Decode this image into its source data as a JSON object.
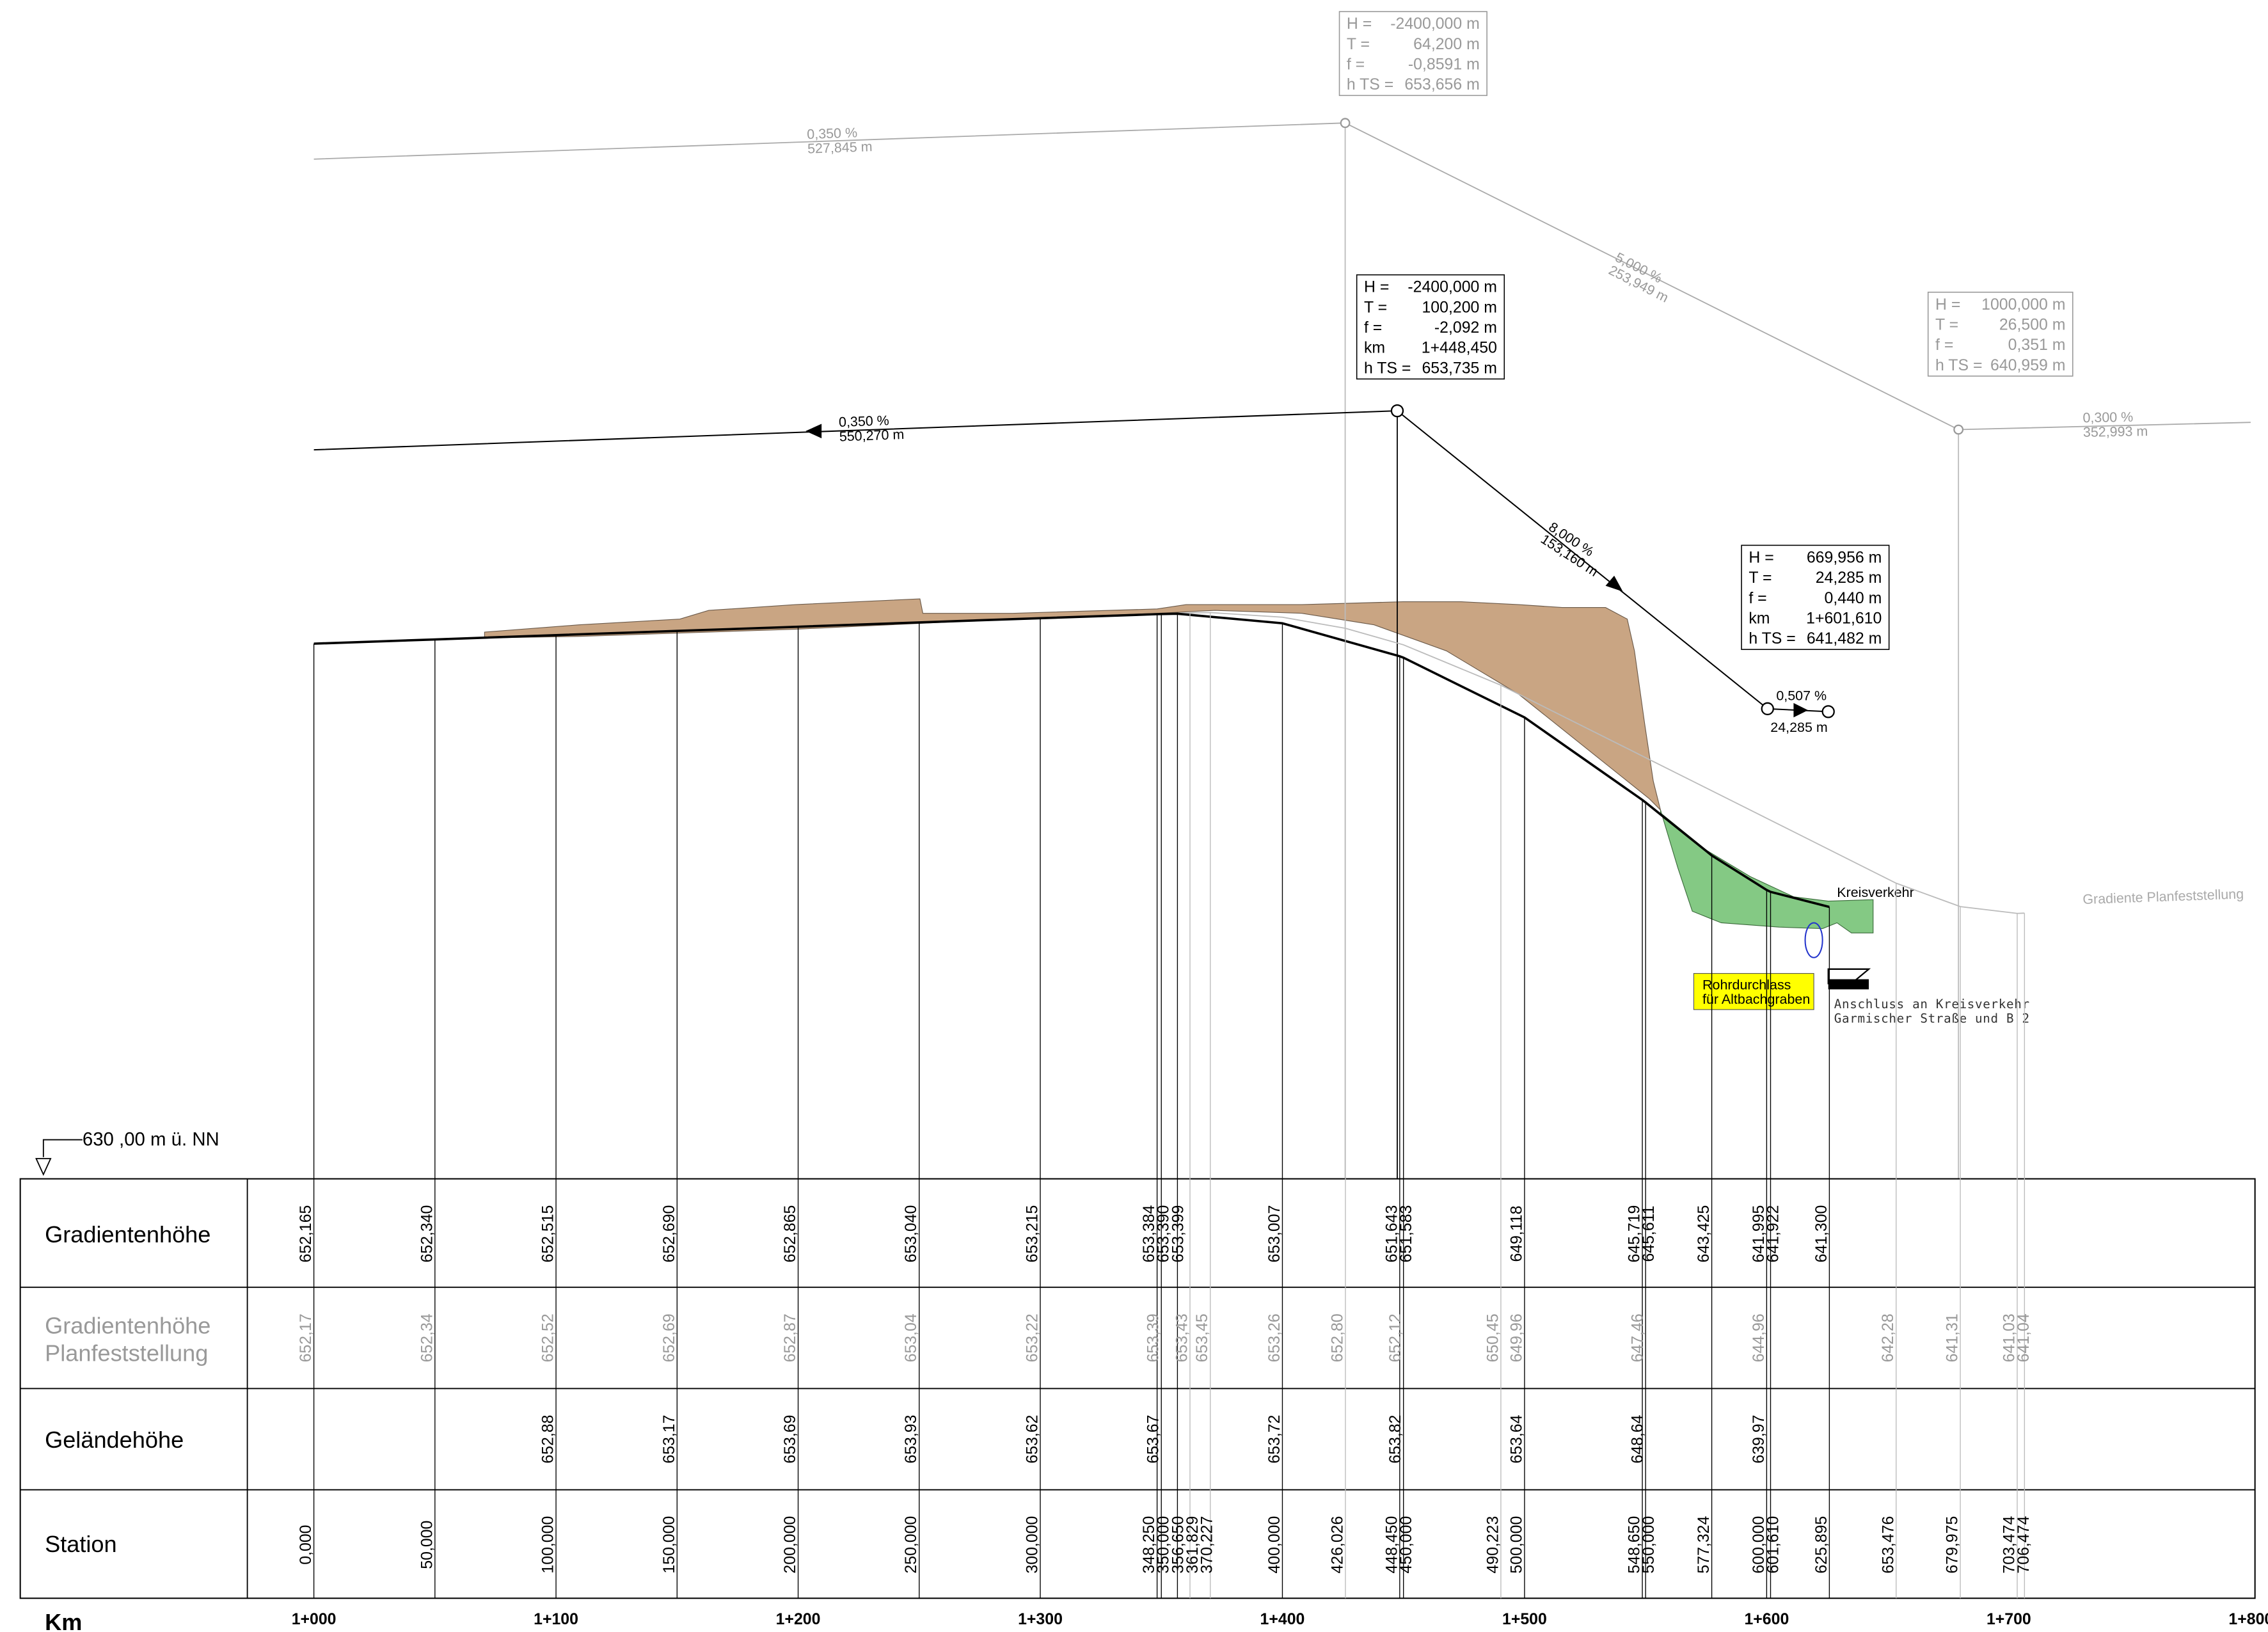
{
  "profile": {
    "planned_tangents": [
      {
        "slope": "0,350  %",
        "length": "527,845  m"
      },
      {
        "slope": "5,000  %",
        "length": "253,949  m"
      },
      {
        "slope": "0,300  %",
        "length": "352,993  m"
      }
    ],
    "planned_curves": [
      {
        "rows": [
          [
            "H =",
            "-2400,000 m"
          ],
          [
            "T =",
            "64,200 m"
          ],
          [
            "f =",
            "-0,8591 m"
          ],
          [
            "h TS =",
            "653,656 m"
          ]
        ]
      },
      {
        "rows": [
          [
            "H =",
            "1000,000 m"
          ],
          [
            "T =",
            "26,500 m"
          ],
          [
            "f =",
            "0,351 m"
          ],
          [
            "h TS =",
            "640,959 m"
          ]
        ]
      }
    ],
    "tangents": [
      {
        "slope": "0,350  %",
        "length": "550,270  m"
      },
      {
        "slope": "8,000  %",
        "length": "153,160  m"
      },
      {
        "slope": "0,507  %",
        "length": "24,285  m"
      }
    ],
    "curves": [
      {
        "rows": [
          [
            "H =",
            "-2400,000 m"
          ],
          [
            "T =",
            "100,200 m"
          ],
          [
            "f =",
            "-2,092 m"
          ],
          [
            "km",
            "1+448,450"
          ],
          [
            "h TS =",
            "653,735 m"
          ]
        ]
      },
      {
        "rows": [
          [
            "H =",
            "669,956 m"
          ],
          [
            "T =",
            "24,285 m"
          ],
          [
            "f =",
            "0,440 m"
          ],
          [
            "km",
            "1+601,610"
          ],
          [
            "h TS =",
            "641,482 m"
          ]
        ]
      }
    ],
    "labels": {
      "roundabout": "Kreisverkehr",
      "culvert": [
        "Rohrdurchlass",
        "für Altbachgraben"
      ],
      "connection": [
        "Anschluss an Kreisverkehr",
        "Garmischer Straße und B 2"
      ],
      "planned_gradient": "Gradiente Planfeststellung",
      "datum": "630 ,00 m ü. NN"
    }
  },
  "table": {
    "headers": {
      "gradient": "Gradientenhöhe",
      "planned": [
        "Gradientenhöhe",
        "Planfeststellung"
      ],
      "ground": "Geländehöhe",
      "station": "Station",
      "km": "Km"
    },
    "columns": [
      {
        "station": "0,000",
        "gradient": "652,165",
        "planned": "652,17"
      },
      {
        "station": "50,000",
        "gradient": "652,340",
        "planned": "652,34"
      },
      {
        "station": "100,000",
        "gradient": "652,515",
        "planned": "652,52",
        "ground": "652,88"
      },
      {
        "station": "150,000",
        "gradient": "652,690",
        "planned": "652,69",
        "ground": "653,17"
      },
      {
        "station": "200,000",
        "gradient": "652,865",
        "planned": "652,87",
        "ground": "653,69"
      },
      {
        "station": "250,000",
        "gradient": "653,040",
        "planned": "653,04",
        "ground": "653,93"
      },
      {
        "station": "300,000",
        "gradient": "653,215",
        "planned": "653,22",
        "ground": "653,62"
      },
      {
        "station": "348,250",
        "gradient": "653,384"
      },
      {
        "station": "350,000",
        "gradient": "653,390",
        "planned": "653,39",
        "ground": "653,67"
      },
      {
        "station": "356,650",
        "gradient": "653,399"
      },
      {
        "station": "361,829",
        "planned": "653,43"
      },
      {
        "station": "370,227",
        "planned": "653,45"
      },
      {
        "station": "400,000",
        "gradient": "653,007",
        "planned": "653,26",
        "ground": "653,72"
      },
      {
        "station": "426,026",
        "planned": "652,80"
      },
      {
        "station": "448,450",
        "gradient": "651,643"
      },
      {
        "station": "450,000",
        "gradient": "651,583",
        "planned": "652,12",
        "ground": "653,82"
      },
      {
        "station": "490,223",
        "planned": "650,45"
      },
      {
        "station": "500,000",
        "gradient": "649,118",
        "planned": "649,96",
        "ground": "653,64"
      },
      {
        "station": "548,650",
        "gradient": "645,719"
      },
      {
        "station": "550,000",
        "gradient": "645,611",
        "planned": "647,46",
        "ground": "648,64"
      },
      {
        "station": "577,324",
        "gradient": "643,425"
      },
      {
        "station": "600,000",
        "gradient": "641,995",
        "planned": "644,96",
        "ground": "639,97"
      },
      {
        "station": "601,610",
        "gradient": "641,922"
      },
      {
        "station": "625,895",
        "gradient": "641,300"
      },
      {
        "station": "653,476",
        "planned": "642,28"
      },
      {
        "station": "679,975",
        "planned": "641,31"
      },
      {
        "station": "703,474",
        "planned": "641,03"
      },
      {
        "station": "706,474",
        "planned": "641,04"
      }
    ],
    "km_labels": [
      "1+000",
      "1+100",
      "1+200",
      "1+300",
      "1+400",
      "1+500",
      "1+600",
      "1+700",
      "1+800"
    ]
  }
}
